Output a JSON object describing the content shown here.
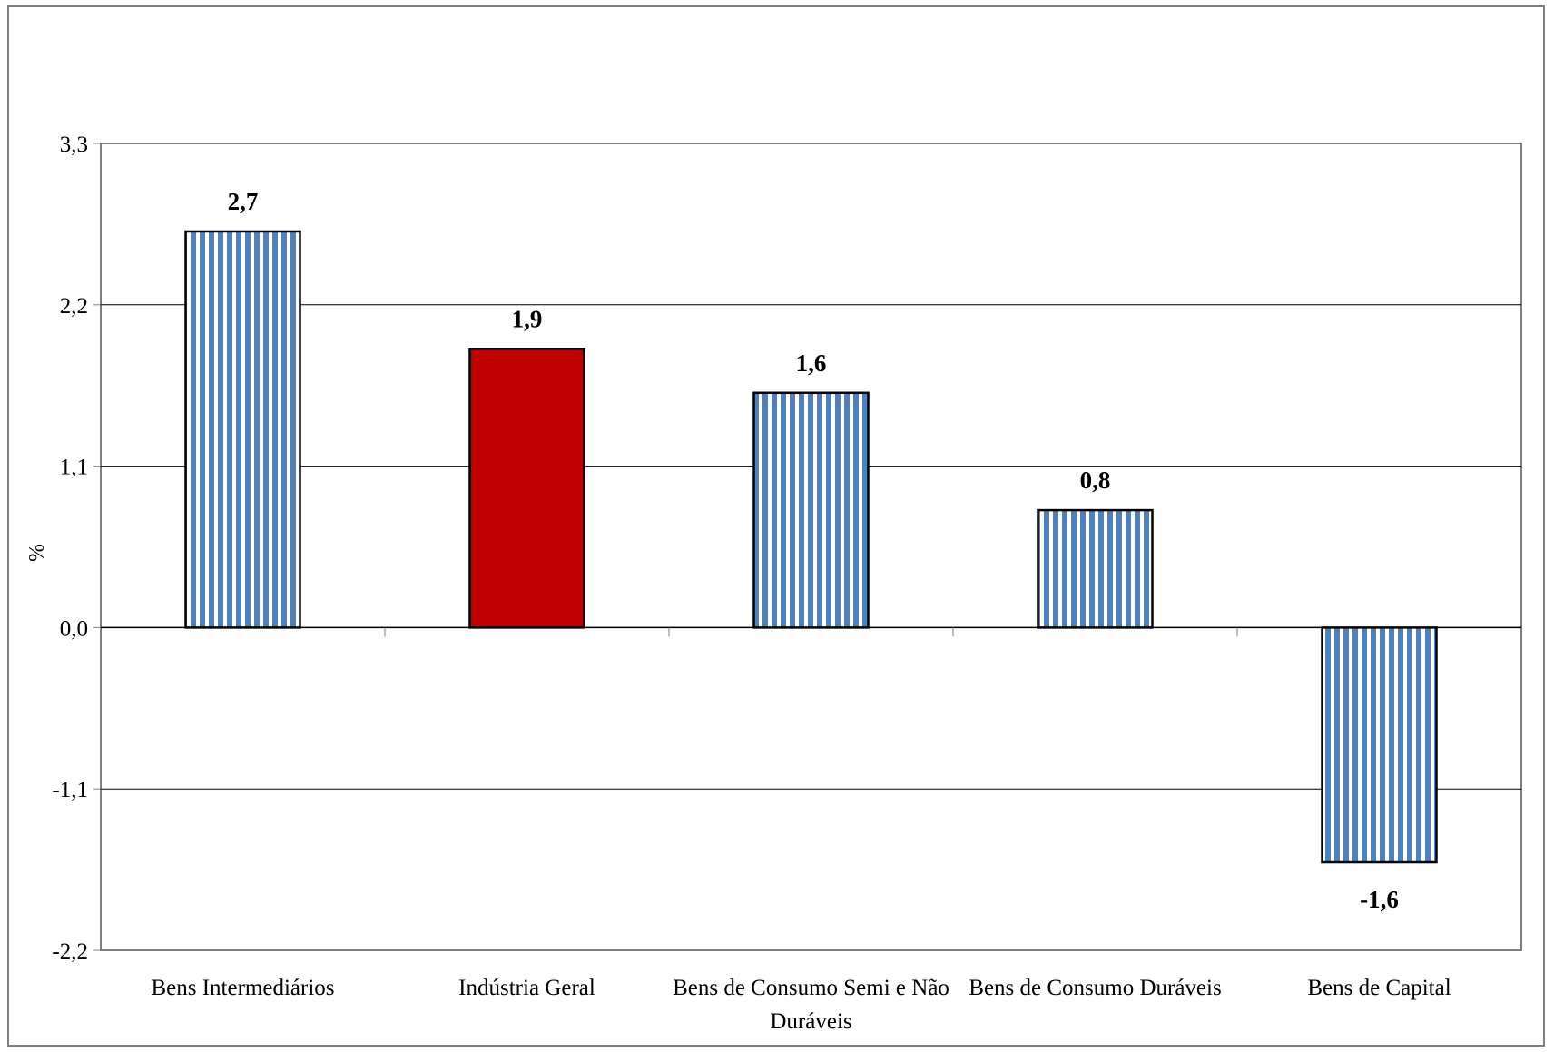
{
  "chart_data": {
    "type": "bar",
    "title": "",
    "xlabel": "",
    "ylabel": "%",
    "ylim": [
      -2.2,
      3.3
    ],
    "yticks": [
      "3,3",
      "2,2",
      "1,1",
      "0,0",
      "-1,1",
      "-2,2"
    ],
    "ytick_values": [
      3.3,
      2.2,
      1.1,
      0.0,
      -1.1,
      -2.2
    ],
    "grid": true,
    "legend": "none",
    "categories": [
      [
        "Bens Intermediários"
      ],
      [
        "Indústria Geral"
      ],
      [
        "Bens de Consumo Semi e Não",
        "Duráveis"
      ],
      [
        "Bens de Consumo Duráveis"
      ],
      [
        "Bens de Capital"
      ]
    ],
    "values": [
      2.7,
      1.9,
      1.6,
      0.8,
      -1.6
    ],
    "value_labels": [
      "2,7",
      "1,9",
      "1,6",
      "0,8",
      "-1,6"
    ],
    "bar_styles": [
      "striped",
      "solid",
      "striped",
      "striped",
      "striped"
    ],
    "colors": {
      "striped_fill": "#4f81bd",
      "stripe_gap": "#ffffff",
      "solid_fill": "#c00000",
      "bar_border": "#000000",
      "grid": "#000000",
      "plot_border": "#7f7f7f"
    }
  }
}
